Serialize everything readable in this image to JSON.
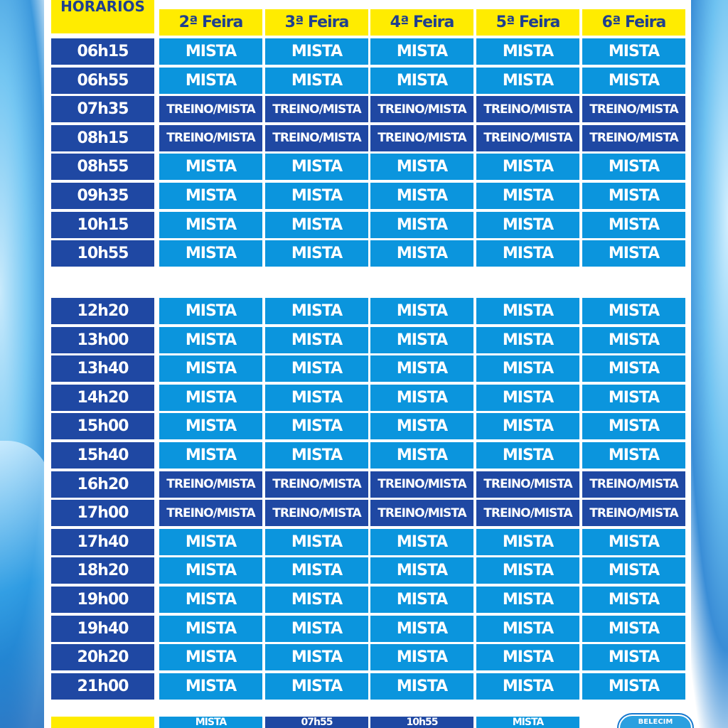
{
  "header": {
    "times_label": "HORÁRIOS",
    "days": [
      "2ª Feira",
      "3ª Feira",
      "4ª Feira",
      "5ª Feira",
      "6ª Feira"
    ]
  },
  "morning": [
    {
      "time": "06h15",
      "cells": [
        "MISTA",
        "MISTA",
        "MISTA",
        "MISTA",
        "MISTA"
      ]
    },
    {
      "time": "06h55",
      "cells": [
        "MISTA",
        "MISTA",
        "MISTA",
        "MISTA",
        "MISTA"
      ]
    },
    {
      "time": "07h35",
      "cells": [
        "TREINO/MISTA",
        "TREINO/MISTA",
        "TREINO/MISTA",
        "TREINO/MISTA",
        "TREINO/MISTA"
      ]
    },
    {
      "time": "08h15",
      "cells": [
        "TREINO/MISTA",
        "TREINO/MISTA",
        "TREINO/MISTA",
        "TREINO/MISTA",
        "TREINO/MISTA"
      ]
    },
    {
      "time": "08h55",
      "cells": [
        "MISTA",
        "MISTA",
        "MISTA",
        "MISTA",
        "MISTA"
      ]
    },
    {
      "time": "09h35",
      "cells": [
        "MISTA",
        "MISTA",
        "MISTA",
        "MISTA",
        "MISTA"
      ]
    },
    {
      "time": "10h15",
      "cells": [
        "MISTA",
        "MISTA",
        "MISTA",
        "MISTA",
        "MISTA"
      ]
    },
    {
      "time": "10h55",
      "cells": [
        "MISTA",
        "MISTA",
        "MISTA",
        "MISTA",
        "MISTA"
      ]
    }
  ],
  "afternoon": [
    {
      "time": "12h20",
      "cells": [
        "MISTA",
        "MISTA",
        "MISTA",
        "MISTA",
        "MISTA"
      ]
    },
    {
      "time": "13h00",
      "cells": [
        "MISTA",
        "MISTA",
        "MISTA",
        "MISTA",
        "MISTA"
      ]
    },
    {
      "time": "13h40",
      "cells": [
        "MISTA",
        "MISTA",
        "MISTA",
        "MISTA",
        "MISTA"
      ]
    },
    {
      "time": "14h20",
      "cells": [
        "MISTA",
        "MISTA",
        "MISTA",
        "MISTA",
        "MISTA"
      ]
    },
    {
      "time": "15h00",
      "cells": [
        "MISTA",
        "MISTA",
        "MISTA",
        "MISTA",
        "MISTA"
      ]
    },
    {
      "time": "15h40",
      "cells": [
        "MISTA",
        "MISTA",
        "MISTA",
        "MISTA",
        "MISTA"
      ]
    },
    {
      "time": "16h20",
      "cells": [
        "TREINO/MISTA",
        "TREINO/MISTA",
        "TREINO/MISTA",
        "TREINO/MISTA",
        "TREINO/MISTA"
      ]
    },
    {
      "time": "17h00",
      "cells": [
        "TREINO/MISTA",
        "TREINO/MISTA",
        "TREINO/MISTA",
        "TREINO/MISTA",
        "TREINO/MISTA"
      ]
    },
    {
      "time": "17h40",
      "cells": [
        "MISTA",
        "MISTA",
        "MISTA",
        "MISTA",
        "MISTA"
      ]
    },
    {
      "time": "18h20",
      "cells": [
        "MISTA",
        "MISTA",
        "MISTA",
        "MISTA",
        "MISTA"
      ]
    },
    {
      "time": "19h00",
      "cells": [
        "MISTA",
        "MISTA",
        "MISTA",
        "MISTA",
        "MISTA"
      ]
    },
    {
      "time": "19h40",
      "cells": [
        "MISTA",
        "MISTA",
        "MISTA",
        "MISTA",
        "MISTA"
      ]
    },
    {
      "time": "20h20",
      "cells": [
        "MISTA",
        "MISTA",
        "MISTA",
        "MISTA",
        "MISTA"
      ]
    },
    {
      "time": "21h00",
      "cells": [
        "MISTA",
        "MISTA",
        "MISTA",
        "MISTA",
        "MISTA"
      ]
    }
  ],
  "bottom_row": {
    "cells": [
      "MISTA",
      "07h55",
      "10h55",
      "MISTA"
    ]
  },
  "stamp": {
    "text": "BELECIM"
  },
  "colors": {
    "time_bg": "#1f48a3",
    "mista_bg": "#0b95dd",
    "treino_bg": "#1f48a3",
    "header_bg": "#ffec00",
    "header_text": "#1f3f8f"
  }
}
